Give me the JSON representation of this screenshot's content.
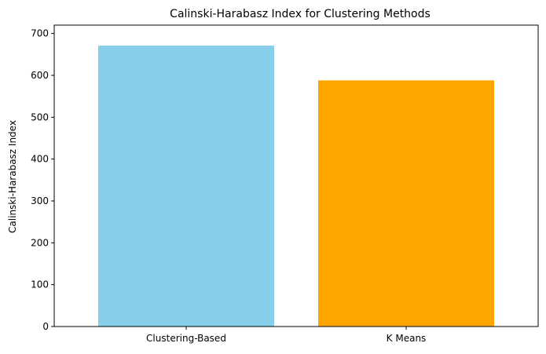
{
  "chart_data": {
    "type": "bar",
    "title": "Calinski-Harabasz Index for Clustering Methods",
    "xlabel": "",
    "ylabel": "Calinski-Harabasz Index",
    "categories": [
      "Clustering-Based",
      "K Means"
    ],
    "values": [
      671,
      588
    ],
    "colors": [
      "#87CEEB",
      "#FFA500"
    ],
    "ylim": [
      0,
      720
    ],
    "yticks": [
      0,
      100,
      200,
      300,
      400,
      500,
      600,
      700
    ],
    "grid": false,
    "legend": "none"
  }
}
